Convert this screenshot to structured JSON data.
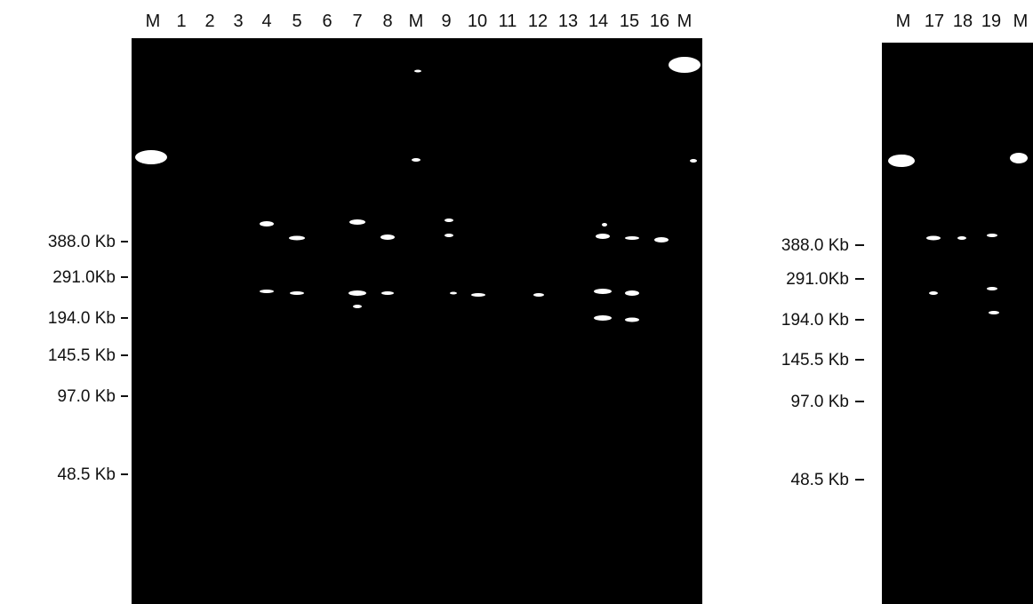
{
  "gels": [
    {
      "lanes": [
        "M",
        "1",
        "2",
        "3",
        "4",
        "5",
        "6",
        "7",
        "8",
        "M",
        "9",
        "10",
        "11",
        "12",
        "13",
        "14",
        "15",
        "16",
        "M"
      ],
      "markers": [
        "388.0 Kb",
        "291.0Kb",
        "194.0 Kb",
        "145.5 Kb",
        "97.0 Kb",
        "48.5 Kb"
      ]
    },
    {
      "lanes": [
        "M",
        "17",
        "18",
        "19",
        "M"
      ],
      "markers": [
        "388.0 Kb",
        "291.0Kb",
        "194.0 Kb",
        "145.5 Kb",
        "97.0 Kb",
        "48.5 Kb"
      ]
    }
  ]
}
